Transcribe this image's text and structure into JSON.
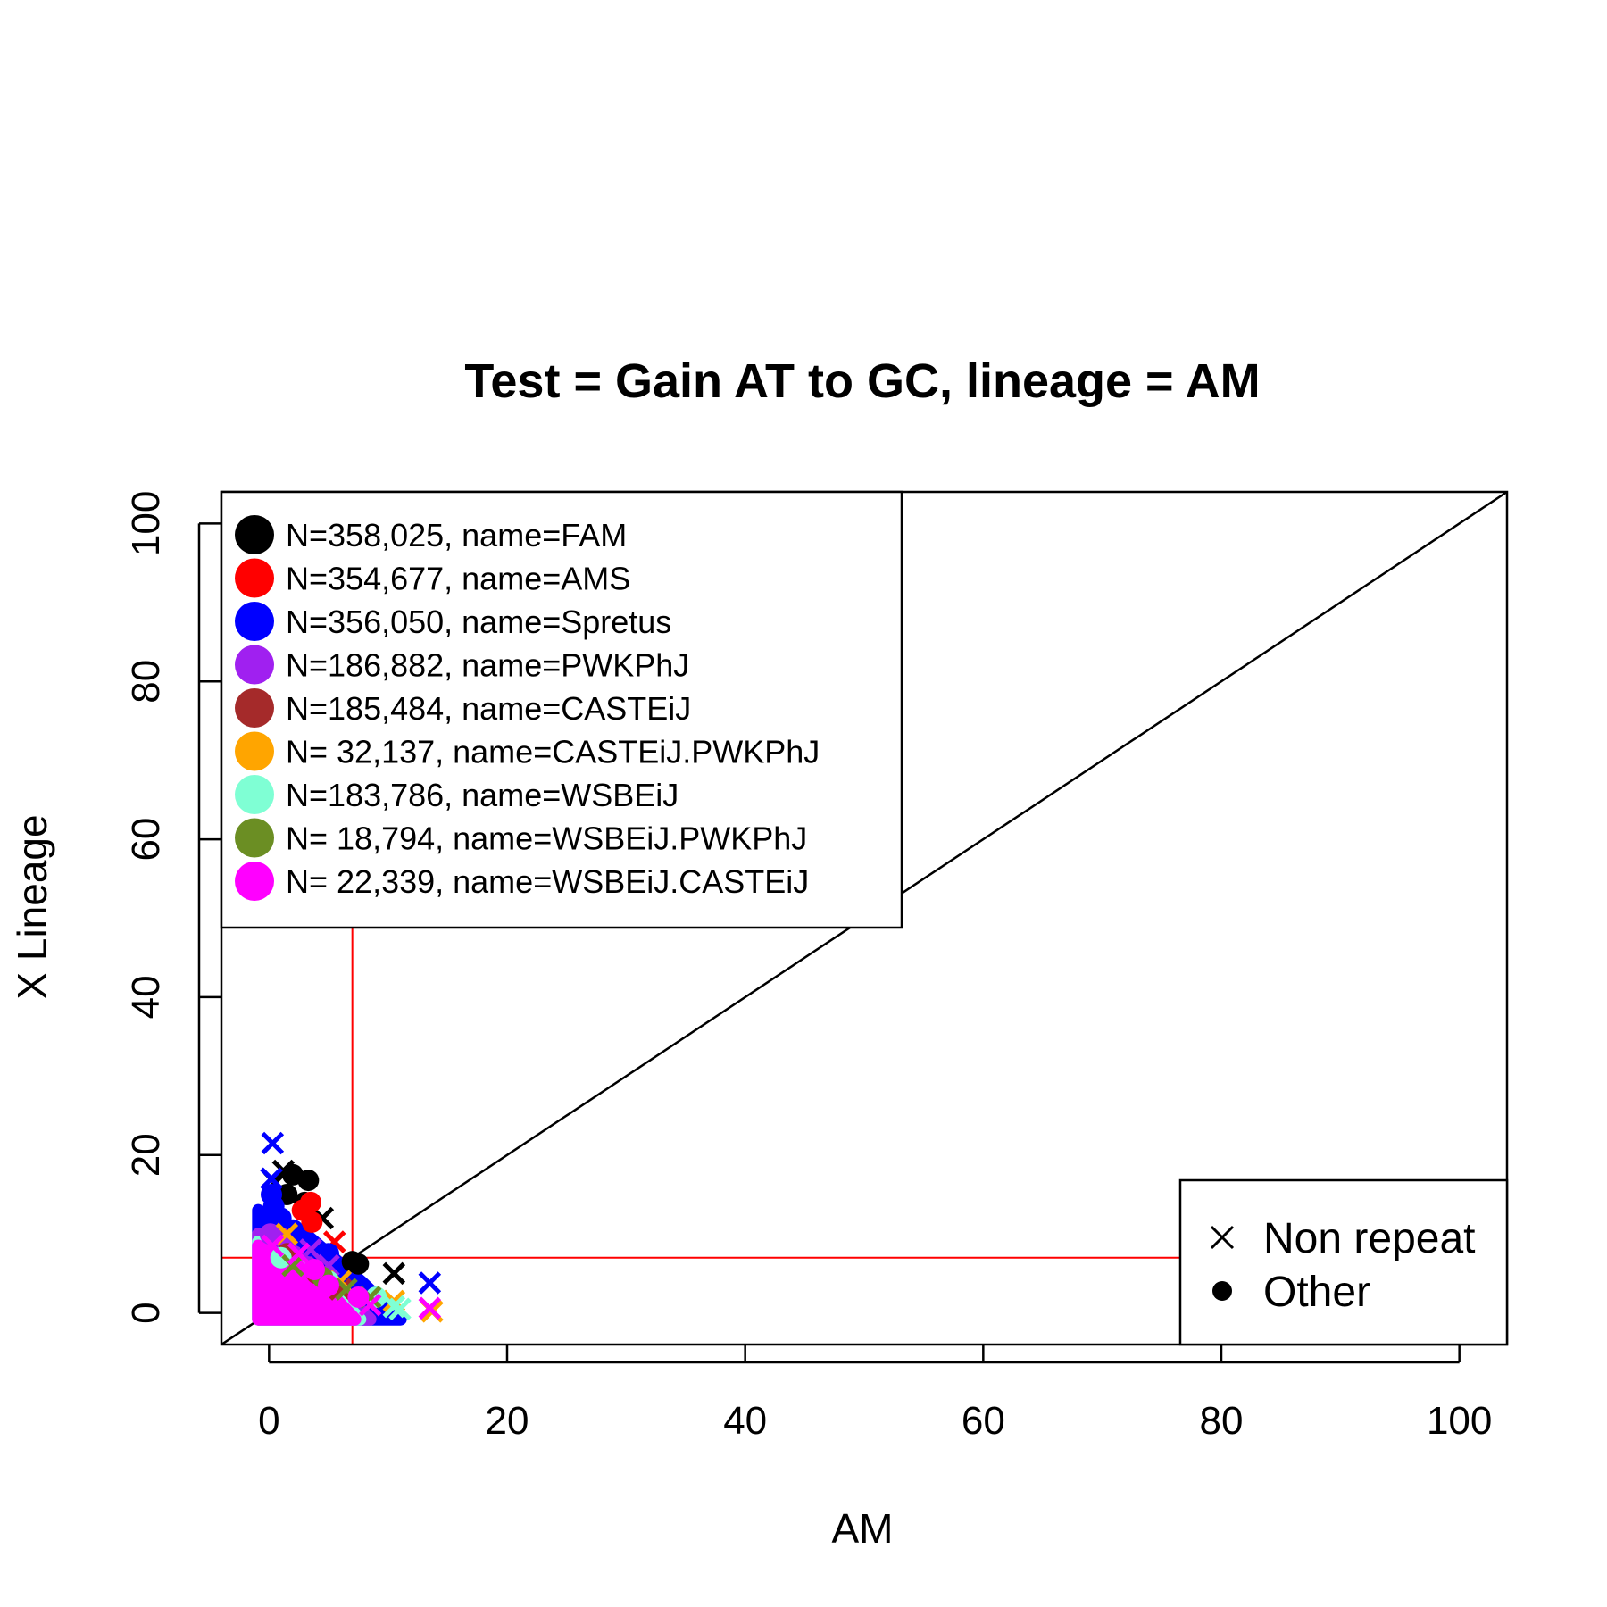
{
  "chart_data": {
    "type": "scatter",
    "title": "Test = Gain AT to GC, lineage = AM",
    "xlabel": "AM",
    "ylabel": "X Lineage",
    "xlim": [
      -4,
      104
    ],
    "ylim": [
      -4,
      104
    ],
    "xticks": [
      0,
      20,
      40,
      60,
      80,
      100
    ],
    "yticks": [
      0,
      20,
      40,
      60,
      80,
      100
    ],
    "threshold": 7,
    "threshold_color": "#ff0000",
    "diagonal": true,
    "legend_position": "top-left",
    "shape_legend_position": "bottom-right",
    "series": [
      {
        "label": "N=358,025, name=FAM",
        "color": "#000000",
        "points": [
          [
            2,
            17.5,
            "o"
          ],
          [
            3.3,
            16.8,
            "o"
          ],
          [
            1.2,
            18,
            "x"
          ],
          [
            0.5,
            16.5,
            "x"
          ],
          [
            4.5,
            12,
            "x"
          ],
          [
            7,
            6.5,
            "o"
          ],
          [
            7.5,
            6.2,
            "o"
          ],
          [
            10.5,
            5,
            "x"
          ],
          [
            3,
            14,
            "o"
          ],
          [
            1.5,
            15,
            "o"
          ]
        ]
      },
      {
        "label": "N=354,677, name=AMS",
        "color": "#ff0000",
        "points": [
          [
            3.5,
            14,
            "o"
          ],
          [
            2.8,
            13,
            "o"
          ],
          [
            3.6,
            11.5,
            "o"
          ],
          [
            5.5,
            9,
            "x"
          ]
        ]
      },
      {
        "label": "N=356,050, name=Spretus",
        "color": "#0000ff",
        "points": [
          [
            0.3,
            21.5,
            "x"
          ],
          [
            0.2,
            17,
            "x"
          ],
          [
            0.2,
            15,
            "o"
          ],
          [
            0.4,
            13.5,
            "o"
          ],
          [
            1,
            12,
            "o"
          ],
          [
            0.3,
            11,
            "o"
          ],
          [
            2,
            10.5,
            "o"
          ],
          [
            3.5,
            8.5,
            "o"
          ],
          [
            5,
            7.5,
            "o"
          ],
          [
            13.5,
            3.8,
            "x"
          ]
        ]
      },
      {
        "label": "N=186,882, name=PWKPhJ",
        "color": "#a020f0",
        "points": [
          [
            0.1,
            10,
            "o"
          ],
          [
            1,
            9.5,
            "o"
          ],
          [
            1.5,
            8,
            "o"
          ],
          [
            3.5,
            8,
            "x"
          ],
          [
            5,
            6,
            "x"
          ]
        ]
      },
      {
        "label": "N=185,484, name=CASTEiJ",
        "color": "#a52a2a",
        "points": [
          [
            1.5,
            7.5,
            "o"
          ],
          [
            4,
            5,
            "o"
          ],
          [
            6,
            3,
            "x"
          ]
        ]
      },
      {
        "label": "N= 32,137, name=CASTEiJ.PWKPhJ",
        "color": "#ffa500",
        "points": [
          [
            1.5,
            10,
            "x"
          ],
          [
            6,
            4,
            "x"
          ],
          [
            10.5,
            1.5,
            "x"
          ],
          [
            13.7,
            0.2,
            "x"
          ]
        ]
      },
      {
        "label": "N=183,786, name=WSBEiJ",
        "color": "#7fffd4",
        "points": [
          [
            1,
            7,
            "o"
          ],
          [
            5,
            4,
            "o"
          ],
          [
            9,
            2,
            "o"
          ],
          [
            10.5,
            0.8,
            "x"
          ],
          [
            11,
            0.5,
            "x"
          ]
        ]
      },
      {
        "label": "N= 18,794, name=WSBEiJ.PWKPhJ",
        "color": "#6b8e23",
        "points": [
          [
            2,
            6,
            "x"
          ],
          [
            4.5,
            4.5,
            "o"
          ],
          [
            6.5,
            3,
            "x"
          ],
          [
            8.5,
            2,
            "x"
          ]
        ]
      },
      {
        "label": "N= 22,339, name=WSBEiJ.CASTEiJ",
        "color": "#ff00ff",
        "points": [
          [
            0.3,
            8.5,
            "x"
          ],
          [
            2.5,
            7.5,
            "x"
          ],
          [
            3.8,
            5.5,
            "o"
          ],
          [
            5,
            3.5,
            "o"
          ],
          [
            7.5,
            2,
            "o"
          ],
          [
            8.5,
            1,
            "x"
          ],
          [
            13.5,
            0.6,
            "x"
          ]
        ]
      }
    ],
    "shape_legend": [
      {
        "label": "Non repeat",
        "symbol": "x"
      },
      {
        "label": "Other",
        "symbol": "o"
      }
    ]
  }
}
